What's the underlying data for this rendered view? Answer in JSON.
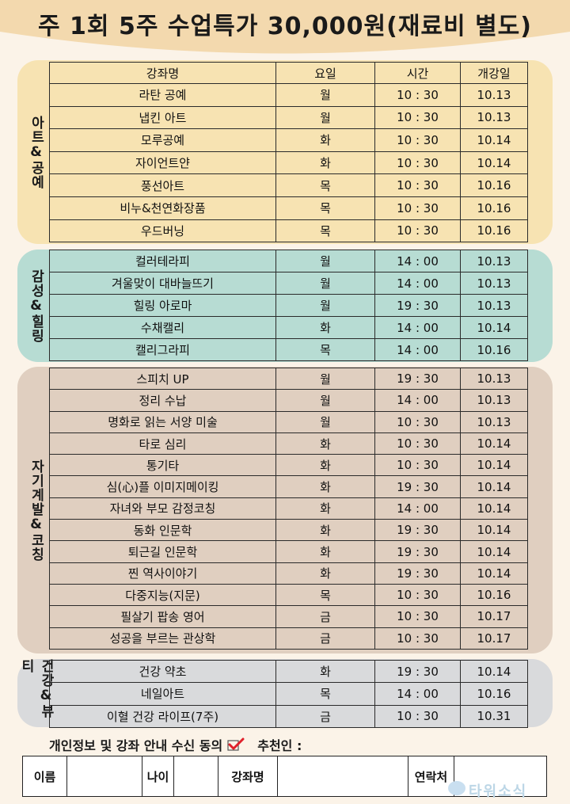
{
  "header": {
    "title": "주 1회 5주 수업특가 30,000원(재료비 별도)"
  },
  "columns": [
    "강좌명",
    "요일",
    "시간",
    "개강일"
  ],
  "colors": {
    "background": "#fbf3e8",
    "title_band": "#f3d9ae",
    "art": "#f7e3b2",
    "healing": "#b7dcd3",
    "self_dev": "#e0cfc0",
    "health": "#d9dadc",
    "check": "#e0202a"
  },
  "sections": [
    {
      "label": "아트&공예",
      "rows": [
        [
          "라탄 공예",
          "월",
          "10 : 30",
          "10.13"
        ],
        [
          "냅킨 아트",
          "월",
          "10 : 30",
          "10.13"
        ],
        [
          "모루공예",
          "화",
          "10 : 30",
          "10.14"
        ],
        [
          "자이언트얀",
          "화",
          "10 : 30",
          "10.14"
        ],
        [
          "풍선아트",
          "목",
          "10 : 30",
          "10.16"
        ],
        [
          "비누&천연화장품",
          "목",
          "10 : 30",
          "10.16"
        ],
        [
          "우드버닝",
          "목",
          "10 : 30",
          "10.16"
        ]
      ]
    },
    {
      "label": "감성&힐링",
      "rows": [
        [
          "컬러테라피",
          "월",
          "14 : 00",
          "10.13"
        ],
        [
          "겨울맞이 대바늘뜨기",
          "월",
          "14 : 00",
          "10.13"
        ],
        [
          "힐링 아로마",
          "월",
          "19 : 30",
          "10.13"
        ],
        [
          "수채캘리",
          "화",
          "14 : 00",
          "10.14"
        ],
        [
          "캘리그라피",
          "목",
          "14 : 00",
          "10.16"
        ]
      ]
    },
    {
      "label": "자기계발&코칭",
      "rows": [
        [
          "스피치 UP",
          "월",
          "19 : 30",
          "10.13"
        ],
        [
          "정리 수납",
          "월",
          "14 : 00",
          "10.13"
        ],
        [
          "명화로 읽는 서양 미술",
          "월",
          "10 : 30",
          "10.13"
        ],
        [
          "타로 심리",
          "화",
          "10 : 30",
          "10.14"
        ],
        [
          "통기타",
          "화",
          "10 : 30",
          "10.14"
        ],
        [
          "심(心)플 이미지메이킹",
          "화",
          "19 : 30",
          "10.14"
        ],
        [
          "자녀와 부모 감정코칭",
          "화",
          "14 : 00",
          "10.14"
        ],
        [
          "동화 인문학",
          "화",
          "19 : 30",
          "10.14"
        ],
        [
          "퇴근길 인문학",
          "화",
          "19 : 30",
          "10.14"
        ],
        [
          "찐 역사이야기",
          "화",
          "19 : 30",
          "10.14"
        ],
        [
          "다중지능(지문)",
          "목",
          "10 : 30",
          "10.16"
        ],
        [
          "필살기 팝송 영어",
          "금",
          "10 : 30",
          "10.17"
        ],
        [
          "성공을 부르는 관상학",
          "금",
          "10 : 30",
          "10.17"
        ]
      ]
    },
    {
      "label": "건강&뷰티",
      "rows": [
        [
          "건강 약초",
          "화",
          "19 : 30",
          "10.14"
        ],
        [
          "네일아트",
          "목",
          "14 : 00",
          "10.16"
        ],
        [
          "이혈 건강 라이프(7주)",
          "금",
          "10 : 30",
          "10.31"
        ]
      ]
    }
  ],
  "consent": {
    "text": "개인정보 및 강좌 안내 수신 동의",
    "checked": true,
    "recommender": "추천인 :"
  },
  "form": {
    "name": "이름",
    "age": "나이",
    "course": "강좌명",
    "contact": "연락처"
  },
  "watermark": "타워소식"
}
